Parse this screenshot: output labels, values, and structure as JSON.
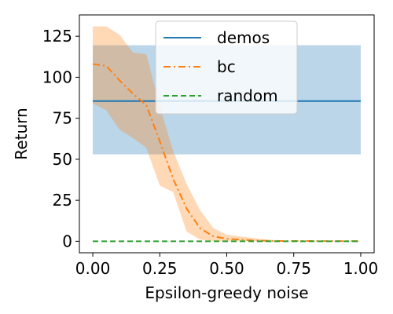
{
  "chart_data": {
    "type": "line",
    "title": "",
    "xlabel": "Epsilon-greedy noise",
    "ylabel": "Return",
    "xlim": [
      -0.05,
      1.05
    ],
    "ylim": [
      -7,
      138
    ],
    "xticks": [
      0.0,
      0.25,
      0.5,
      0.75,
      1.0
    ],
    "xtick_labels": [
      "0.00",
      "0.25",
      "0.50",
      "0.75",
      "1.00"
    ],
    "yticks": [
      0,
      25,
      50,
      75,
      100,
      125
    ],
    "ytick_labels": [
      "0",
      "25",
      "50",
      "75",
      "100",
      "125"
    ],
    "grid": false,
    "legend": {
      "position": "upper center"
    },
    "series": [
      {
        "name": "demos",
        "color": "#1f77b4",
        "style": "solid",
        "x": [
          0.0,
          1.0
        ],
        "y": [
          85.5,
          85.5
        ],
        "band_lower": [
          53,
          53
        ],
        "band_upper": [
          119.5,
          119.5
        ],
        "band_color": "#1f77b4",
        "band_opacity": 0.3
      },
      {
        "name": "bc",
        "color": "#ff7f0e",
        "style": "dashdot",
        "x": [
          0.0,
          0.05,
          0.1,
          0.15,
          0.2,
          0.25,
          0.3,
          0.35,
          0.4,
          0.45,
          0.5,
          0.55,
          0.6,
          0.65,
          0.7,
          0.75,
          0.8,
          0.85,
          0.9,
          0.95,
          1.0
        ],
        "y": [
          108,
          107,
          98,
          90,
          83,
          61,
          38,
          20,
          8,
          3,
          1.5,
          1,
          0.5,
          0.3,
          0.2,
          0.2,
          0.2,
          0.1,
          0.1,
          0.1,
          0.1
        ],
        "band_lower": [
          84,
          80,
          68,
          63,
          57,
          34,
          30,
          6,
          1,
          0.2,
          0,
          0,
          0,
          0,
          0,
          0,
          0,
          0,
          0,
          0,
          0
        ],
        "band_upper": [
          131,
          131,
          126,
          115,
          114,
          82,
          55,
          35,
          19,
          8,
          4,
          3,
          2,
          1,
          0.5,
          0.3,
          0.3,
          0.2,
          0.2,
          0.2,
          0.2
        ],
        "band_color": "#ff7f0e",
        "band_opacity": 0.3
      },
      {
        "name": "random",
        "color": "#2ca02c",
        "style": "dashed",
        "x": [
          0.0,
          1.0
        ],
        "y": [
          0,
          0
        ]
      }
    ]
  }
}
